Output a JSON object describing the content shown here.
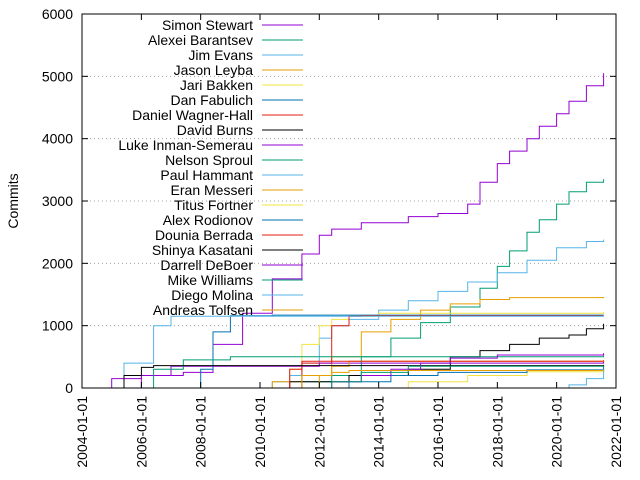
{
  "chart_data": {
    "type": "line",
    "title": "",
    "xlabel": "",
    "ylabel": "Commits",
    "xlim": [
      "2004-01-01",
      "2022-01-01"
    ],
    "ylim": [
      0,
      6000
    ],
    "x_ticks": [
      "2004-01-01",
      "2006-01-01",
      "2008-01-01",
      "2010-01-01",
      "2012-01-01",
      "2014-01-01",
      "2016-01-01",
      "2018-01-01",
      "2020-01-01",
      "2022-01-01"
    ],
    "y_ticks": [
      0,
      1000,
      2000,
      3000,
      4000,
      5000,
      6000
    ],
    "grid": "dotted",
    "legend_position": "top-left",
    "series": [
      {
        "name": "Simon Stewart",
        "color": "#9400d3",
        "points": [
          [
            "2004-08-01",
            0
          ],
          [
            "2005-01-01",
            150
          ],
          [
            "2006-01-01",
            200
          ],
          [
            "2007-06-01",
            250
          ],
          [
            "2008-06-01",
            700
          ],
          [
            "2009-06-01",
            1200
          ],
          [
            "2010-06-01",
            1750
          ],
          [
            "2011-06-01",
            2150
          ],
          [
            "2012-01-01",
            2450
          ],
          [
            "2012-06-01",
            2550
          ],
          [
            "2013-06-01",
            2650
          ],
          [
            "2015-01-01",
            2750
          ],
          [
            "2016-01-01",
            2800
          ],
          [
            "2017-01-01",
            2950
          ],
          [
            "2017-06-01",
            3300
          ],
          [
            "2018-01-01",
            3600
          ],
          [
            "2018-06-01",
            3800
          ],
          [
            "2019-01-01",
            4000
          ],
          [
            "2019-06-01",
            4200
          ],
          [
            "2020-01-01",
            4400
          ],
          [
            "2020-06-01",
            4600
          ],
          [
            "2021-01-01",
            4850
          ],
          [
            "2021-08-01",
            5050
          ]
        ]
      },
      {
        "name": "Alexei Barantsev",
        "color": "#009e73",
        "points": [
          [
            "2010-12-01",
            0
          ],
          [
            "2011-06-01",
            100
          ],
          [
            "2012-06-01",
            200
          ],
          [
            "2013-06-01",
            500
          ],
          [
            "2014-06-01",
            800
          ],
          [
            "2015-06-01",
            1050
          ],
          [
            "2016-06-01",
            1300
          ],
          [
            "2017-06-01",
            1600
          ],
          [
            "2018-01-01",
            1950
          ],
          [
            "2018-06-01",
            2200
          ],
          [
            "2019-01-01",
            2500
          ],
          [
            "2019-06-01",
            2700
          ],
          [
            "2020-01-01",
            2950
          ],
          [
            "2020-06-01",
            3150
          ],
          [
            "2021-01-01",
            3300
          ],
          [
            "2021-08-01",
            3350
          ]
        ]
      },
      {
        "name": "Jim Evans",
        "color": "#56b4e9",
        "points": [
          [
            "2010-01-01",
            0
          ],
          [
            "2010-06-01",
            100
          ],
          [
            "2011-01-01",
            200
          ],
          [
            "2011-06-01",
            400
          ],
          [
            "2012-01-01",
            800
          ],
          [
            "2012-06-01",
            1000
          ],
          [
            "2013-01-01",
            1100
          ],
          [
            "2014-01-01",
            1250
          ],
          [
            "2015-01-01",
            1400
          ],
          [
            "2016-01-01",
            1550
          ],
          [
            "2017-01-01",
            1700
          ],
          [
            "2018-01-01",
            1850
          ],
          [
            "2019-01-01",
            2050
          ],
          [
            "2020-01-01",
            2250
          ],
          [
            "2021-01-01",
            2350
          ],
          [
            "2021-08-01",
            2380
          ]
        ]
      },
      {
        "name": "Jason Leyba",
        "color": "#e69f00",
        "points": [
          [
            "2009-10-01",
            0
          ],
          [
            "2010-06-01",
            100
          ],
          [
            "2011-06-01",
            200
          ],
          [
            "2012-06-01",
            500
          ],
          [
            "2013-06-01",
            900
          ],
          [
            "2014-06-01",
            1100
          ],
          [
            "2015-06-01",
            1250
          ],
          [
            "2016-06-01",
            1350
          ],
          [
            "2017-06-01",
            1420
          ],
          [
            "2018-06-01",
            1450
          ],
          [
            "2021-08-01",
            1460
          ]
        ]
      },
      {
        "name": "Jari Bakken",
        "color": "#f0e442",
        "points": [
          [
            "2010-08-01",
            0
          ],
          [
            "2011-01-01",
            300
          ],
          [
            "2011-06-01",
            700
          ],
          [
            "2012-01-01",
            1000
          ],
          [
            "2012-06-01",
            1100
          ],
          [
            "2013-01-01",
            1150
          ],
          [
            "2014-01-01",
            1200
          ],
          [
            "2021-08-01",
            1220
          ]
        ]
      },
      {
        "name": "Dan Fabulich",
        "color": "#0072b2",
        "points": [
          [
            "2007-06-01",
            0
          ],
          [
            "2008-01-01",
            300
          ],
          [
            "2008-06-01",
            900
          ],
          [
            "2009-01-01",
            1160
          ],
          [
            "2010-06-01",
            1170
          ],
          [
            "2021-08-01",
            1170
          ]
        ]
      },
      {
        "name": "Daniel Wagner-Hall",
        "color": "#e51e10",
        "points": [
          [
            "2010-10-01",
            0
          ],
          [
            "2011-06-01",
            400
          ],
          [
            "2012-06-01",
            1000
          ],
          [
            "2013-01-01",
            1150
          ],
          [
            "2013-06-01",
            1160
          ],
          [
            "2021-08-01",
            1160
          ]
        ]
      },
      {
        "name": "David Burns",
        "color": "#000000",
        "points": [
          [
            "2010-01-01",
            0
          ],
          [
            "2011-01-01",
            100
          ],
          [
            "2013-01-01",
            200
          ],
          [
            "2015-01-01",
            300
          ],
          [
            "2016-06-01",
            500
          ],
          [
            "2017-06-01",
            600
          ],
          [
            "2018-06-01",
            700
          ],
          [
            "2019-06-01",
            800
          ],
          [
            "2020-06-01",
            850
          ],
          [
            "2021-01-01",
            950
          ],
          [
            "2021-08-01",
            1030
          ]
        ]
      },
      {
        "name": "Luke Inman-Semerau",
        "color": "#9400d3",
        "points": [
          [
            "2005-06-01",
            0
          ],
          [
            "2006-01-01",
            200
          ],
          [
            "2007-01-01",
            350
          ],
          [
            "2012-01-01",
            400
          ],
          [
            "2021-08-01",
            420
          ]
        ]
      },
      {
        "name": "Nelson Sproul",
        "color": "#009e73",
        "points": [
          [
            "2005-09-01",
            0
          ],
          [
            "2006-06-01",
            300
          ],
          [
            "2007-06-01",
            450
          ],
          [
            "2009-01-01",
            500
          ],
          [
            "2021-08-01",
            520
          ]
        ]
      },
      {
        "name": "Paul Hammant",
        "color": "#56b4e9",
        "points": [
          [
            "2004-06-01",
            0
          ],
          [
            "2005-06-01",
            400
          ],
          [
            "2006-06-01",
            1000
          ],
          [
            "2007-01-01",
            1150
          ],
          [
            "2021-08-01",
            1170
          ]
        ]
      },
      {
        "name": "Eran Messeri",
        "color": "#e69f00",
        "points": [
          [
            "2011-06-01",
            0
          ],
          [
            "2012-01-01",
            200
          ],
          [
            "2012-06-01",
            350
          ],
          [
            "2013-01-01",
            430
          ],
          [
            "2021-08-01",
            450
          ]
        ]
      },
      {
        "name": "Titus Fortner",
        "color": "#f0e442",
        "points": [
          [
            "2013-01-01",
            0
          ],
          [
            "2015-01-01",
            100
          ],
          [
            "2017-01-01",
            200
          ],
          [
            "2019-01-01",
            260
          ],
          [
            "2021-08-01",
            330
          ]
        ]
      },
      {
        "name": "Alex Rodionov",
        "color": "#0072b2",
        "points": [
          [
            "2012-01-01",
            0
          ],
          [
            "2013-01-01",
            100
          ],
          [
            "2014-06-01",
            200
          ],
          [
            "2016-01-01",
            250
          ],
          [
            "2019-01-01",
            290
          ],
          [
            "2021-08-01",
            350
          ]
        ]
      },
      {
        "name": "Dounia Berrada",
        "color": "#e51e10",
        "points": [
          [
            "2010-06-01",
            0
          ],
          [
            "2011-01-01",
            300
          ],
          [
            "2011-06-01",
            430
          ],
          [
            "2021-08-01",
            440
          ]
        ]
      },
      {
        "name": "Shinya Kasatani",
        "color": "#000000",
        "points": [
          [
            "2004-12-01",
            0
          ],
          [
            "2005-06-01",
            200
          ],
          [
            "2006-01-01",
            330
          ],
          [
            "2006-06-01",
            360
          ],
          [
            "2021-08-01",
            370
          ]
        ]
      },
      {
        "name": "Darrell DeBoer",
        "color": "#9400d3",
        "points": [
          [
            "2011-06-01",
            0
          ],
          [
            "2012-06-01",
            100
          ],
          [
            "2013-06-01",
            200
          ],
          [
            "2014-06-01",
            300
          ],
          [
            "2015-06-01",
            400
          ],
          [
            "2016-06-01",
            480
          ],
          [
            "2018-01-01",
            530
          ],
          [
            "2021-08-01",
            560
          ]
        ]
      },
      {
        "name": "Mike Williams",
        "color": "#009e73",
        "points": [
          [
            "2012-01-01",
            0
          ],
          [
            "2012-06-01",
            100
          ],
          [
            "2013-06-01",
            250
          ],
          [
            "2015-01-01",
            350
          ],
          [
            "2021-08-01",
            360
          ]
        ]
      },
      {
        "name": "Diego Molina",
        "color": "#56b4e9",
        "points": [
          [
            "2019-06-01",
            0
          ],
          [
            "2020-06-01",
            50
          ],
          [
            "2021-01-01",
            150
          ],
          [
            "2021-08-01",
            300
          ]
        ]
      },
      {
        "name": "Andreas Tolfsen",
        "color": "#e69f00",
        "points": [
          [
            "2011-01-01",
            0
          ],
          [
            "2011-06-01",
            200
          ],
          [
            "2012-06-01",
            250
          ],
          [
            "2013-01-01",
            280
          ],
          [
            "2021-08-01",
            290
          ]
        ]
      }
    ]
  }
}
